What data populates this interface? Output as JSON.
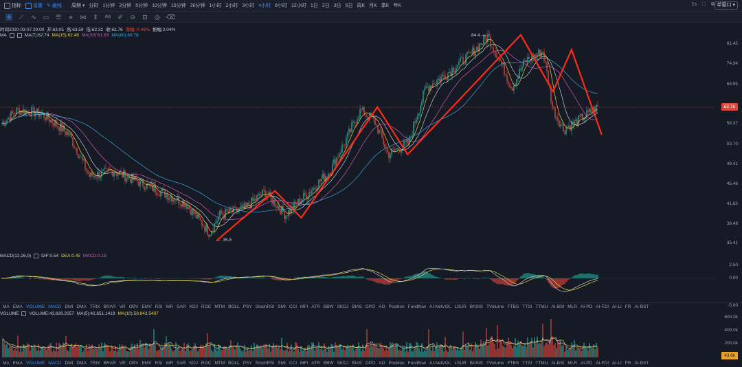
{
  "topbar": {
    "indicators_label": "指标",
    "settings_label": "设置",
    "draw_label": "画线",
    "period_label": "周期",
    "timeframes": [
      "分时",
      "1分钟",
      "3分钟",
      "5分钟",
      "10分钟",
      "15分钟",
      "30分钟",
      "1小时",
      "2小时",
      "3小时",
      "4小时",
      "6小时",
      "12小时",
      "1日",
      "2日",
      "3日",
      "5日",
      "周K",
      "月K",
      "季K",
      "年K"
    ],
    "active_timeframe": "4小时",
    "speed": "1s",
    "window_mode": "单窗口"
  },
  "ohlc": {
    "time": "时间2020-03-07 20:00",
    "open": "开:63.05",
    "high": "高:63.59",
    "low": "低:62.32",
    "close": "收:62.76",
    "change": "涨幅:-0.49%",
    "amplitude": "振幅:2.04%"
  },
  "ma_legend": {
    "name": "MA",
    "ma7": "MA(7):62.74",
    "ma15": "MA(15):62.48",
    "ma30": "MA(30):61.63",
    "ma60": "MA(60):60.78"
  },
  "price_axis": [
    "81.45",
    "74.94",
    "68.95",
    "62.76",
    "58.37",
    "53.70",
    "49.41",
    "45.46",
    "41.83",
    "38.48",
    "35.41"
  ],
  "current_price": "62.76",
  "annotations": {
    "high": "84.4",
    "low": "35.8"
  },
  "macd_legend": {
    "name": "MACD(12,26,9)",
    "dif": "DIF:0.54",
    "dea": "DEA:0.45",
    "macd": "MACD:0.19"
  },
  "macd_axis": [
    "2.50",
    "0.00",
    "-5.00"
  ],
  "volume_legend": {
    "name": "VOLUME",
    "volume": "VOLUME:43,628.2057",
    "ma5": "MA(5):42,651.1419",
    "ma10": "MA(10):58,843.5497"
  },
  "volume_axis": [
    "600.0k",
    "400.0k",
    "200.0k"
  ],
  "current_volume": "43.6k",
  "indicator_tabs": [
    "MA",
    "EMA",
    "VOLUME",
    "MACD",
    "DMI",
    "DMA",
    "TRIX",
    "BRAR",
    "VR",
    "OBV",
    "EMV",
    "RSI",
    "WR",
    "SAR",
    "KDJ",
    "ROC",
    "MTM",
    "BOLL",
    "PSY",
    "StochRSI",
    "SMI",
    "CCI",
    "MFI",
    "ATR",
    "BBW",
    "SKDJ",
    "BIAS",
    "DPO",
    "AO",
    "Position",
    "Fundflow",
    "AI-NetVOL",
    "LSUR",
    "BASIS",
    "TVolume",
    "FTBS",
    "TTSI",
    "TTMU",
    "AI-BSI",
    "MLR",
    "AI-PD",
    "AI-FDI",
    "AI-LI",
    "FR",
    "AI-BST"
  ],
  "active_tabs": [
    "VOLUME",
    "MACD"
  ],
  "colors": {
    "up": "#26a69a",
    "down": "#e0453a",
    "zigzag": "#ff2a1a",
    "ma7": "#e8d24a",
    "ma15": "#c8ccd8",
    "ma30": "#d45ab8",
    "ma60": "#38a8d8"
  },
  "zigzag_points": [
    [
      0,
      35.8
    ],
    [
      60,
      44.2
    ],
    [
      87,
      39.5
    ],
    [
      165,
      62.8
    ],
    [
      196,
      51.5
    ],
    [
      312,
      84.4
    ],
    [
      345,
      67.0
    ],
    [
      364,
      79.5
    ],
    [
      395,
      55.8
    ]
  ],
  "price_series_seed": 7
}
